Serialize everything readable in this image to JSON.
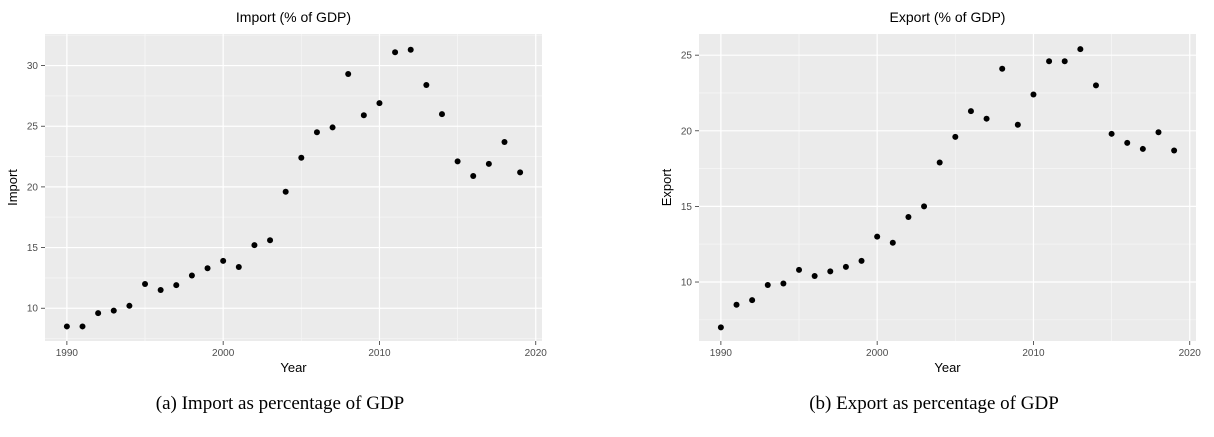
{
  "chart_data": [
    {
      "type": "scatter",
      "title": "Import (% of GDP)",
      "xlabel": "Year",
      "ylabel": "Import",
      "caption": "(a) Import as percentage of GDP",
      "xlim": [
        1988.6,
        2020.4
      ],
      "ylim": [
        7.3,
        32.6
      ],
      "xticks": [
        1990,
        2000,
        2010,
        2020
      ],
      "yticks": [
        10,
        15,
        20,
        25,
        30
      ],
      "grid": true,
      "marker_color": "#000000",
      "panel_background": "#ebebeb",
      "x": [
        1990,
        1991,
        1992,
        1993,
        1994,
        1995,
        1996,
        1997,
        1998,
        1999,
        2000,
        2001,
        2002,
        2003,
        2004,
        2005,
        2006,
        2007,
        2008,
        2009,
        2010,
        2011,
        2012,
        2013,
        2014,
        2015,
        2016,
        2017,
        2018,
        2019
      ],
      "y": [
        8.5,
        8.5,
        9.6,
        9.8,
        10.2,
        12.0,
        11.5,
        11.9,
        12.7,
        13.3,
        13.9,
        13.4,
        15.2,
        15.6,
        19.6,
        22.4,
        24.5,
        24.9,
        29.3,
        25.9,
        26.9,
        31.1,
        31.3,
        28.4,
        26.0,
        22.1,
        20.9,
        21.9,
        23.7,
        21.2
      ]
    },
    {
      "type": "scatter",
      "title": "Export (% of GDP)",
      "xlabel": "Year",
      "ylabel": "Export",
      "caption": "(b) Export as percentage of GDP",
      "xlim": [
        1988.6,
        2020.4
      ],
      "ylim": [
        6.1,
        26.4
      ],
      "xticks": [
        1990,
        2000,
        2010,
        2020
      ],
      "yticks": [
        10,
        15,
        20,
        25
      ],
      "grid": true,
      "marker_color": "#000000",
      "panel_background": "#ebebeb",
      "x": [
        1990,
        1991,
        1992,
        1993,
        1994,
        1995,
        1996,
        1997,
        1998,
        1999,
        2000,
        2001,
        2002,
        2003,
        2004,
        2005,
        2006,
        2007,
        2008,
        2009,
        2010,
        2011,
        2012,
        2013,
        2014,
        2015,
        2016,
        2017,
        2018,
        2019
      ],
      "y": [
        7.0,
        8.5,
        8.8,
        9.8,
        9.9,
        10.8,
        10.4,
        10.7,
        11.0,
        11.4,
        13.0,
        12.6,
        14.3,
        15.0,
        17.9,
        19.6,
        21.3,
        20.8,
        24.1,
        20.4,
        22.4,
        24.6,
        24.6,
        25.4,
        23.0,
        19.8,
        19.2,
        18.8,
        19.9,
        18.7
      ]
    }
  ]
}
